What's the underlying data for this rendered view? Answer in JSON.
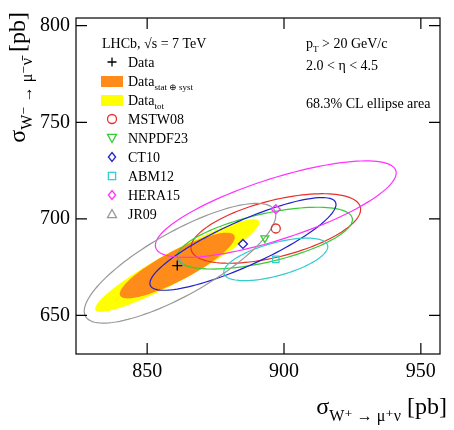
{
  "chart_data": {
    "type": "scatter",
    "title": "LHCb, √s = 7 TeV",
    "x_label": [
      {
        "text": "σ"
      },
      {
        "text": "W⁺ → μ⁺ν",
        "sub": true
      },
      {
        "text": " [pb]"
      }
    ],
    "y_label": [
      {
        "text": "σ"
      },
      {
        "text": "W⁻ → μ⁻ν̄",
        "sub": true
      },
      {
        "text": " [pb]"
      }
    ],
    "annotations": [
      [
        {
          "text": "p"
        },
        {
          "text": "T",
          "sub": true
        },
        {
          "text": " > 20 GeV/c"
        }
      ],
      [
        {
          "text": "2.0 < η < 4.5"
        }
      ],
      [
        {
          "text": "68.3% CL ellipse area"
        }
      ]
    ],
    "xlim": [
      824,
      957
    ],
    "ylim": [
      630,
      804
    ],
    "xticks": [
      850,
      900,
      950
    ],
    "yticks": [
      650,
      700,
      750,
      800
    ],
    "grid": false,
    "legend": "upper left",
    "series": [
      {
        "name": "Data",
        "marker": "cross",
        "color": "#000000",
        "x": [
          861.0
        ],
        "values": [
          675.8
        ]
      },
      {
        "name": "Data",
        "name_sub": "stat ⊕ syst",
        "type": "ellipse",
        "color": "#ff8c1a",
        "x": [
          861.0
        ],
        "values": [
          675.8
        ],
        "ellipse": {
          "dx": 21,
          "dy": 17,
          "rho": 0.86
        }
      },
      {
        "name": "Data",
        "name_sub": "tot",
        "type": "ellipse",
        "color": "#ffff00",
        "x": [
          861.0
        ],
        "values": [
          675.8
        ],
        "ellipse": {
          "dx": 30,
          "dy": 24,
          "rho": 0.93
        }
      },
      {
        "name": "MSTW08",
        "marker": "circle",
        "color": "#e8302a",
        "x": [
          897
        ],
        "values": [
          695
        ],
        "ellipse": {
          "dx": 31,
          "dy": 18,
          "rho": 0.55
        }
      },
      {
        "name": "NNPDF23",
        "marker": "triangle-down",
        "color": "#33cc33",
        "x": [
          893
        ],
        "values": [
          690
        ],
        "ellipse": {
          "dx": 32,
          "dy": 16,
          "rho": 0.6
        }
      },
      {
        "name": "CT10",
        "marker": "diamond",
        "color": "#2222cc",
        "x": [
          885
        ],
        "values": [
          687
        ],
        "ellipse": {
          "dx": 34,
          "dy": 24,
          "rho": 0.85
        }
      },
      {
        "name": "ABM12",
        "marker": "square",
        "color": "#33cccc",
        "x": [
          897
        ],
        "values": [
          679
        ],
        "ellipse": {
          "dx": 19,
          "dy": 11,
          "rho": 0.6
        }
      },
      {
        "name": "HERA15",
        "marker": "diamond",
        "color": "#ff33ff",
        "x": [
          897
        ],
        "values": [
          705
        ],
        "ellipse": {
          "dx": 44,
          "dy": 25,
          "rho": 0.75
        }
      },
      {
        "name": "JR09",
        "marker": "triangle",
        "color": "#999999",
        "x": [
          862
        ],
        "values": [
          677
        ],
        "ellipse": {
          "dx": 35,
          "dy": 31,
          "rho": 0.8
        }
      }
    ]
  }
}
